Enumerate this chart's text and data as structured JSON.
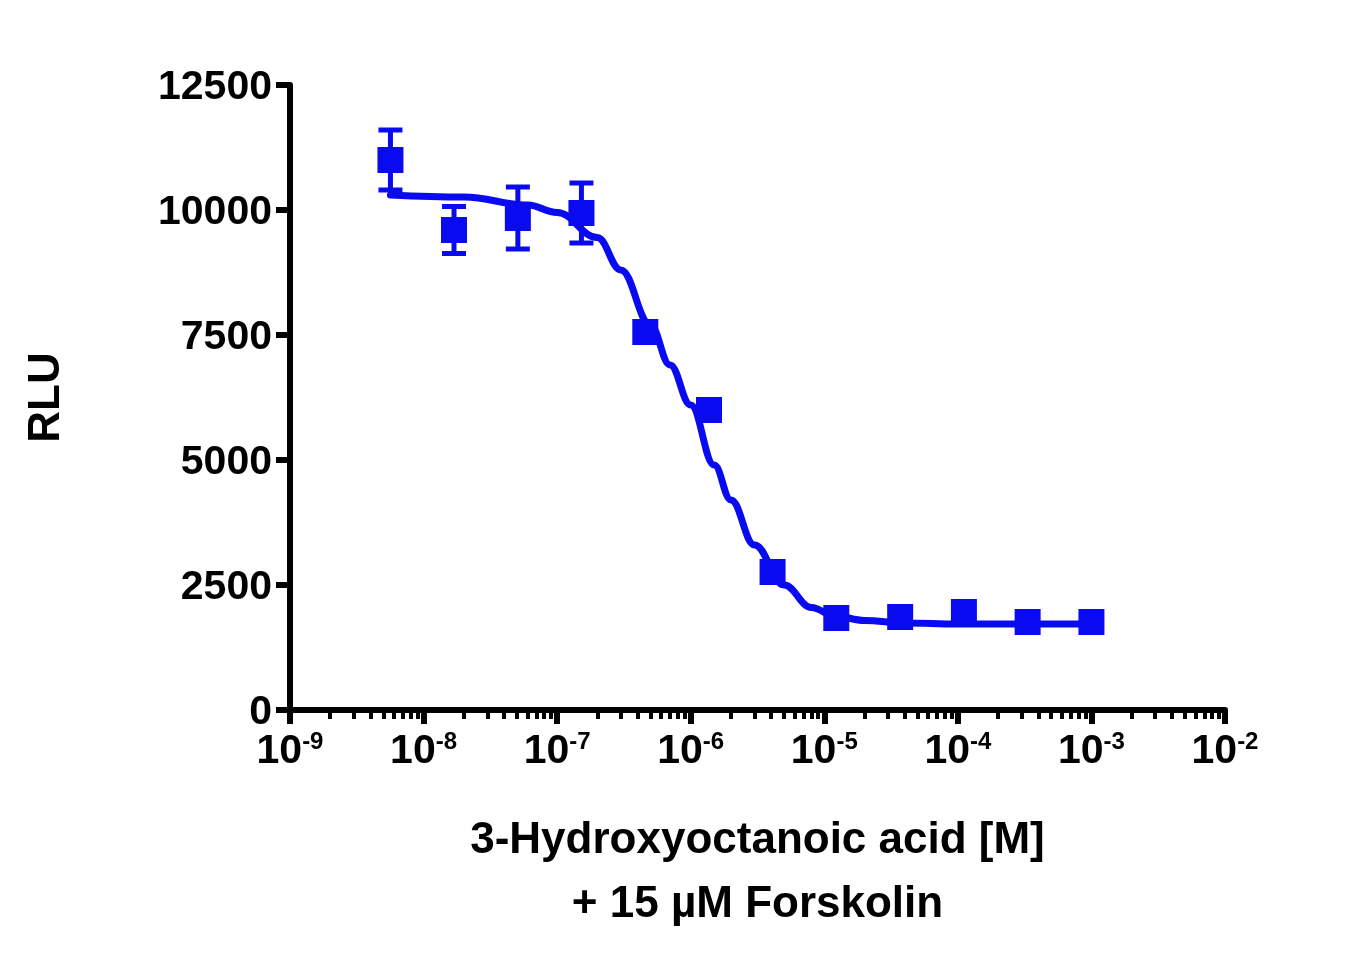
{
  "chart_data": {
    "type": "scatter",
    "xlabel": "3-Hydroxyoctanoic acid [M]\n+ 15 µM Forskolin",
    "ylabel": "RLU",
    "log": "x",
    "xlim": [
      1e-09,
      0.01
    ],
    "xticks": [
      {
        "value": 1e-09,
        "label": "10$^{-9}$"
      },
      {
        "value": 1e-08,
        "label": "10$^{-8}$"
      },
      {
        "value": 1e-07,
        "label": "10$^{-7}$"
      },
      {
        "value": 1e-06,
        "label": "10$^{-6}$"
      },
      {
        "value": 1e-05,
        "label": "10$^{-5}$"
      },
      {
        "value": 0.0001,
        "label": "10$^{-4}$"
      },
      {
        "value": 0.001,
        "label": "10$^{-3}$"
      },
      {
        "value": 0.01,
        "label": "10$^{-2}$"
      }
    ],
    "ylim": [
      0,
      12500
    ],
    "yticks": [
      0,
      2500,
      5000,
      7500,
      10000,
      12500
    ],
    "grid": false,
    "series": [
      {
        "color": "#0a0af0",
        "marker": "square",
        "x": [
          5.65e-09,
          1.69e-08,
          5.08e-08,
          1.52e-07,
          4.57e-07,
          1.37e-06,
          4.1e-06,
          1.23e-05,
          3.7e-05,
          0.000111,
          0.000333,
          0.001
        ],
        "values": [
          11000,
          9600,
          9840,
          9940,
          7560,
          6000,
          2760,
          1840,
          1860,
          1960,
          1760,
          1760
        ],
        "errors": [
          600,
          470,
          620,
          600,
          null,
          null,
          null,
          null,
          null,
          null,
          null,
          null
        ]
      },
      {
        "type": "line",
        "color": "#0a0af0",
        "marker": "none",
        "line_style": "solid",
        "x": [
          5.65e-09,
          2e-08,
          6e-08,
          1e-07,
          2e-07,
          3e-07,
          5e-07,
          7e-07,
          1e-06,
          1.5e-06,
          2e-06,
          3e-06,
          5e-06,
          8e-06,
          1.2e-05,
          2e-05,
          4e-05,
          0.0001,
          0.0003,
          0.001
        ],
        "values": [
          10300,
          10260,
          10100,
          9950,
          9450,
          8800,
          7700,
          6900,
          6100,
          4900,
          4200,
          3300,
          2500,
          2050,
          1880,
          1790,
          1740,
          1720,
          1720,
          1720
        ]
      }
    ]
  }
}
